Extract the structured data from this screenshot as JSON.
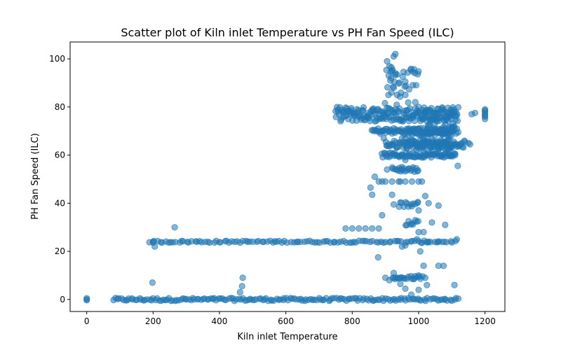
{
  "chart_data": {
    "type": "scatter",
    "title": "Scatter plot of Kiln inlet Temperature vs PH Fan Speed (ILC)",
    "xlabel": "Kiln inlet Temperature",
    "ylabel": "PH Fan Speed (ILC)",
    "xlim": [
      -50,
      1260
    ],
    "ylim": [
      -5,
      107
    ],
    "xticks": [
      0,
      200,
      400,
      600,
      800,
      1000,
      1200
    ],
    "yticks": [
      0,
      20,
      40,
      60,
      80,
      100
    ],
    "grid": false,
    "legend": "none",
    "marker_color": "#1f77b4",
    "marker_alpha": 0.55,
    "series": [
      {
        "points": [
          [
            0,
            0
          ],
          [
            0,
            0.5
          ],
          [
            0,
            -0.3
          ],
          [
            200,
            24
          ],
          [
            205,
            22
          ],
          [
            198,
            7
          ],
          [
            265,
            30
          ],
          [
            470,
            9
          ],
          [
            468,
            5.5
          ],
          [
            462,
            3
          ],
          [
            780,
            29.5
          ],
          [
            800,
            29.5
          ],
          [
            820,
            29.5
          ],
          [
            840,
            29.5
          ],
          [
            860,
            29.5
          ],
          [
            880,
            29.5
          ],
          [
            878,
            17.5
          ],
          [
            890,
            49
          ],
          [
            900,
            49
          ],
          [
            920,
            49
          ],
          [
            940,
            49
          ],
          [
            960,
            49
          ],
          [
            980,
            49
          ],
          [
            1000,
            49
          ],
          [
            1010,
            49
          ],
          [
            855,
            46.5
          ],
          [
            860,
            43.5
          ],
          [
            868,
            51
          ],
          [
            880,
            49
          ],
          [
            890,
            35
          ],
          [
            905,
            54
          ],
          [
            920,
            43.5
          ],
          [
            925,
            39.5
          ],
          [
            945,
            49
          ],
          [
            950,
            55
          ],
          [
            960,
            58
          ],
          [
            905,
            99
          ],
          [
            910,
            93
          ],
          [
            915,
            91
          ],
          [
            920,
            95
          ],
          [
            925,
            101
          ],
          [
            930,
            102
          ],
          [
            930,
            94
          ],
          [
            918,
            86
          ],
          [
            925,
            88
          ],
          [
            935,
            85
          ],
          [
            918,
            96.5
          ],
          [
            960,
            85
          ],
          [
            990,
            82
          ],
          [
            1000,
            80
          ],
          [
            950,
            67
          ],
          [
            895,
            67
          ],
          [
            935,
            9
          ],
          [
            945,
            6.5
          ],
          [
            960,
            4.5
          ],
          [
            978,
            2
          ],
          [
            985,
            8.5
          ],
          [
            1000,
            4
          ],
          [
            1015,
            14
          ],
          [
            1020,
            9
          ],
          [
            1025,
            6
          ],
          [
            1060,
            14
          ],
          [
            1075,
            14
          ],
          [
            1108,
            6
          ],
          [
            1115,
            25
          ],
          [
            1118,
            55.5
          ],
          [
            900,
            9
          ],
          [
            912,
            8
          ],
          [
            925,
            11
          ],
          [
            950,
            9
          ],
          [
            1000,
            10
          ],
          [
            995,
            25
          ],
          [
            1005,
            20
          ],
          [
            1015,
            28
          ],
          [
            1000,
            37
          ],
          [
            1020,
            43
          ],
          [
            1030,
            40
          ],
          [
            1060,
            39
          ],
          [
            1080,
            31
          ],
          [
            1040,
            32
          ],
          [
            1000,
            28
          ],
          [
            950,
            22
          ],
          [
            960,
            22.5
          ],
          [
            1010,
            23.5
          ],
          [
            1030,
            24
          ],
          [
            1060,
            24
          ],
          [
            1160,
            77
          ],
          [
            1170,
            77.5
          ],
          [
            1200,
            75
          ],
          [
            1200,
            76
          ],
          [
            1200,
            77
          ],
          [
            1200,
            78
          ],
          [
            1200,
            79
          ],
          [
            1200,
            76.5
          ],
          [
            1200,
            78.5
          ],
          [
            1130,
            65
          ],
          [
            1150,
            65
          ],
          [
            1155,
            64.5
          ],
          [
            1100,
            60
          ],
          [
            1110,
            60
          ]
        ]
      }
    ],
    "bands": [
      {
        "x_from": 80,
        "x_to": 1120,
        "y": 0,
        "jitter": 0.6,
        "step": 6
      },
      {
        "x_from": 190,
        "x_to": 1110,
        "y": 24,
        "jitter": 0.4,
        "step": 8
      },
      {
        "x_from": 750,
        "x_to": 1120,
        "y": 77,
        "jitter": 3,
        "step": 2
      },
      {
        "x_from": 860,
        "x_to": 1120,
        "y": 70,
        "jitter": 1.2,
        "step": 3
      },
      {
        "x_from": 900,
        "x_to": 1140,
        "y": 64.5,
        "jitter": 1.5,
        "step": 3
      },
      {
        "x_from": 890,
        "x_to": 1110,
        "y": 60,
        "jitter": 1,
        "step": 3
      },
      {
        "x_from": 960,
        "x_to": 1100,
        "y": 67,
        "jitter": 5,
        "step": 2
      },
      {
        "x_from": 1010,
        "x_to": 1110,
        "y": 73,
        "jitter": 5,
        "step": 2
      },
      {
        "x_from": 920,
        "x_to": 1000,
        "y": 54,
        "jitter": 1,
        "step": 4
      },
      {
        "x_from": 940,
        "x_to": 1000,
        "y": 39.5,
        "jitter": 1,
        "step": 5
      },
      {
        "x_from": 960,
        "x_to": 1000,
        "y": 32,
        "jitter": 1.2,
        "step": 5
      },
      {
        "x_from": 920,
        "x_to": 1010,
        "y": 9,
        "jitter": 0.8,
        "step": 5
      },
      {
        "x_from": 900,
        "x_to": 1000,
        "y": 89,
        "jitter": 9,
        "step": 3
      }
    ]
  }
}
